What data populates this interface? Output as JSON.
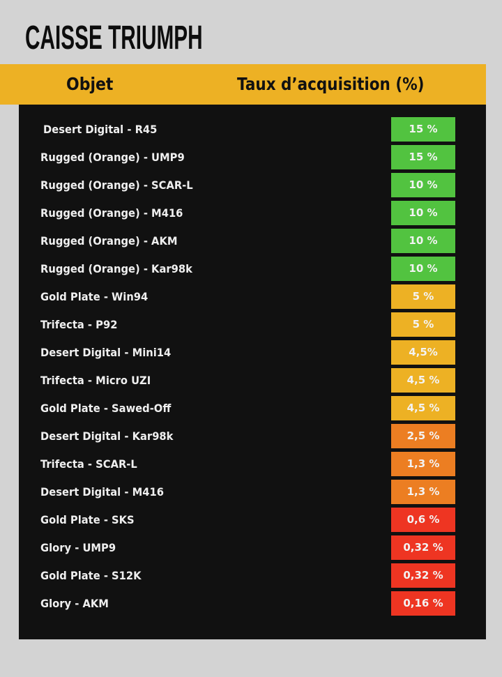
{
  "title": "CAISSE TRIUMPH",
  "header": {
    "col_object": "Objet",
    "col_rate": "Taux d’acquisition (%)"
  },
  "colors": {
    "background": "#d3d3d3",
    "header": "#edb124",
    "panel": "#111111",
    "green": "#52c340",
    "yellow": "#edb124",
    "orange": "#ec7e22",
    "red": "#ee3522"
  },
  "items": [
    {
      "name": "Desert Digital - R45",
      "rate": "15 %",
      "tier": "green"
    },
    {
      "name": "Rugged (Orange) - UMP9",
      "rate": "15 %",
      "tier": "green"
    },
    {
      "name": "Rugged (Orange) - SCAR-L",
      "rate": "10 %",
      "tier": "green"
    },
    {
      "name": "Rugged (Orange) - M416",
      "rate": "10 %",
      "tier": "green"
    },
    {
      "name": "Rugged (Orange) - AKM",
      "rate": "10 %",
      "tier": "green"
    },
    {
      "name": "Rugged (Orange) - Kar98k",
      "rate": "10 %",
      "tier": "green"
    },
    {
      "name": "Gold Plate - Win94",
      "rate": "5 %",
      "tier": "yellow"
    },
    {
      "name": "Trifecta - P92",
      "rate": "5 %",
      "tier": "yellow"
    },
    {
      "name": "Desert Digital - Mini14",
      "rate": "4,5%",
      "tier": "yellow"
    },
    {
      "name": "Trifecta - Micro UZI",
      "rate": "4,5 %",
      "tier": "yellow"
    },
    {
      "name": "Gold Plate - Sawed-Off",
      "rate": "4,5 %",
      "tier": "yellow"
    },
    {
      "name": "Desert Digital - Kar98k",
      "rate": "2,5 %",
      "tier": "orange"
    },
    {
      "name": "Trifecta - SCAR-L",
      "rate": "1,3 %",
      "tier": "orange"
    },
    {
      "name": "Desert Digital - M416",
      "rate": "1,3 %",
      "tier": "orange"
    },
    {
      "name": "Gold Plate - SKS",
      "rate": "0,6 %",
      "tier": "red"
    },
    {
      "name": "Glory - UMP9",
      "rate": "0,32 %",
      "tier": "red"
    },
    {
      "name": "Gold Plate - S12K",
      "rate": "0,32 %",
      "tier": "red"
    },
    {
      "name": "Glory - AKM",
      "rate": "0,16 %",
      "tier": "red"
    }
  ]
}
